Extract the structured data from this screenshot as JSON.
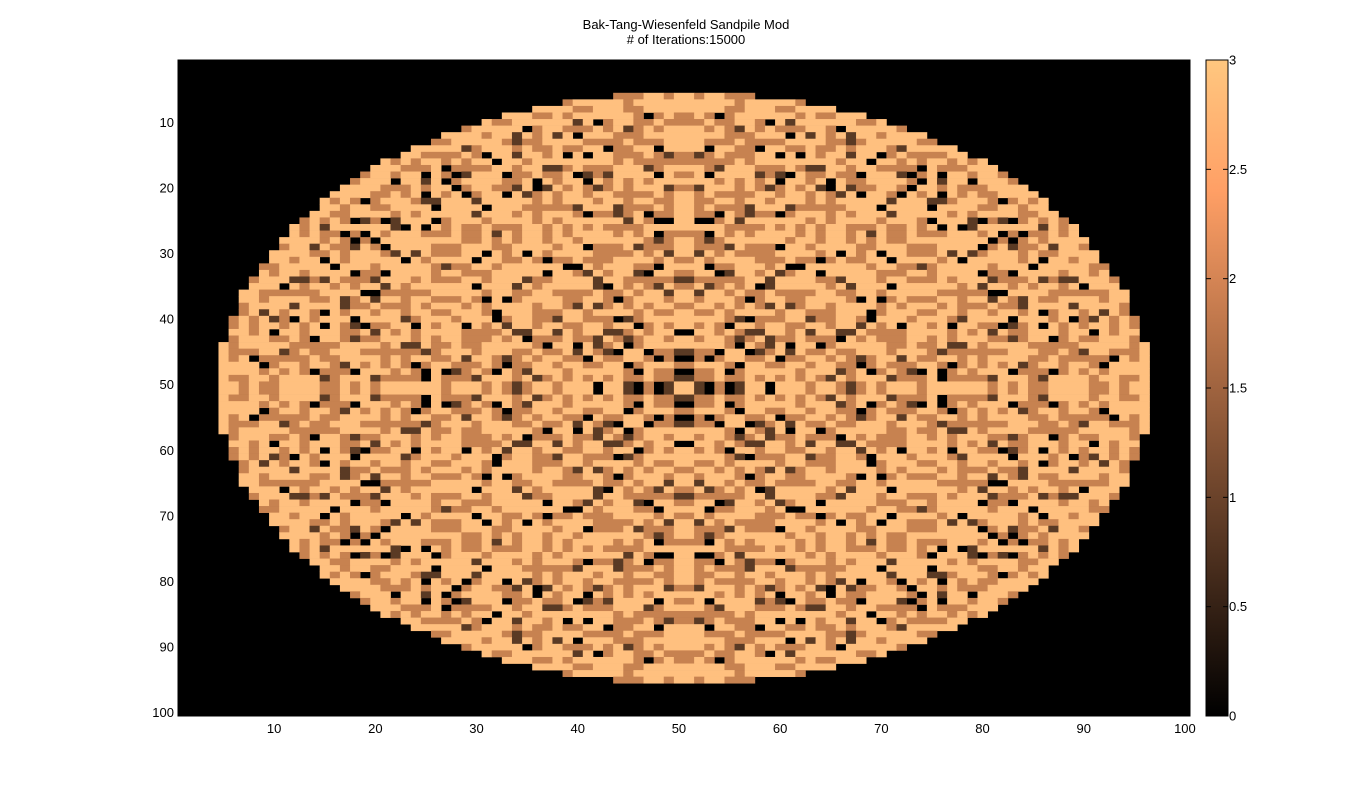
{
  "chart_data": {
    "type": "heatmap",
    "title": "Bak-Tang-Wiesenfeld Sandpile Mod",
    "subtitle": "# of Iterations:15000",
    "xlabel": "",
    "ylabel": "",
    "grid_size": [
      100,
      100
    ],
    "xlim": [
      0.5,
      100.5
    ],
    "ylim": [
      0.5,
      100.5
    ],
    "y_reversed": true,
    "x_ticks": [
      10,
      20,
      30,
      40,
      50,
      60,
      70,
      80,
      90,
      100
    ],
    "y_ticks": [
      10,
      20,
      30,
      40,
      50,
      60,
      70,
      80,
      90,
      100
    ],
    "pattern": "ellipse of settled sandpile values (0-3) with four-fold symmetric fractal texture on a zero background",
    "ellipse": {
      "center_col": 50.5,
      "center_row": 50.5,
      "radius_cols": 46,
      "radius_rows": 45
    },
    "colormap": {
      "name": "copper",
      "clim": [
        0,
        3
      ],
      "ticks": [
        0,
        0.5,
        1,
        1.5,
        2,
        2.5,
        3
      ],
      "tick_labels": [
        "0",
        "0.5",
        "1",
        "1.5",
        "2",
        "2.5",
        "3"
      ]
    },
    "value_colors": {
      "0": "#000000",
      "1": "#5a3a24",
      "2": "#c78250",
      "3": "#ffc07f"
    }
  }
}
